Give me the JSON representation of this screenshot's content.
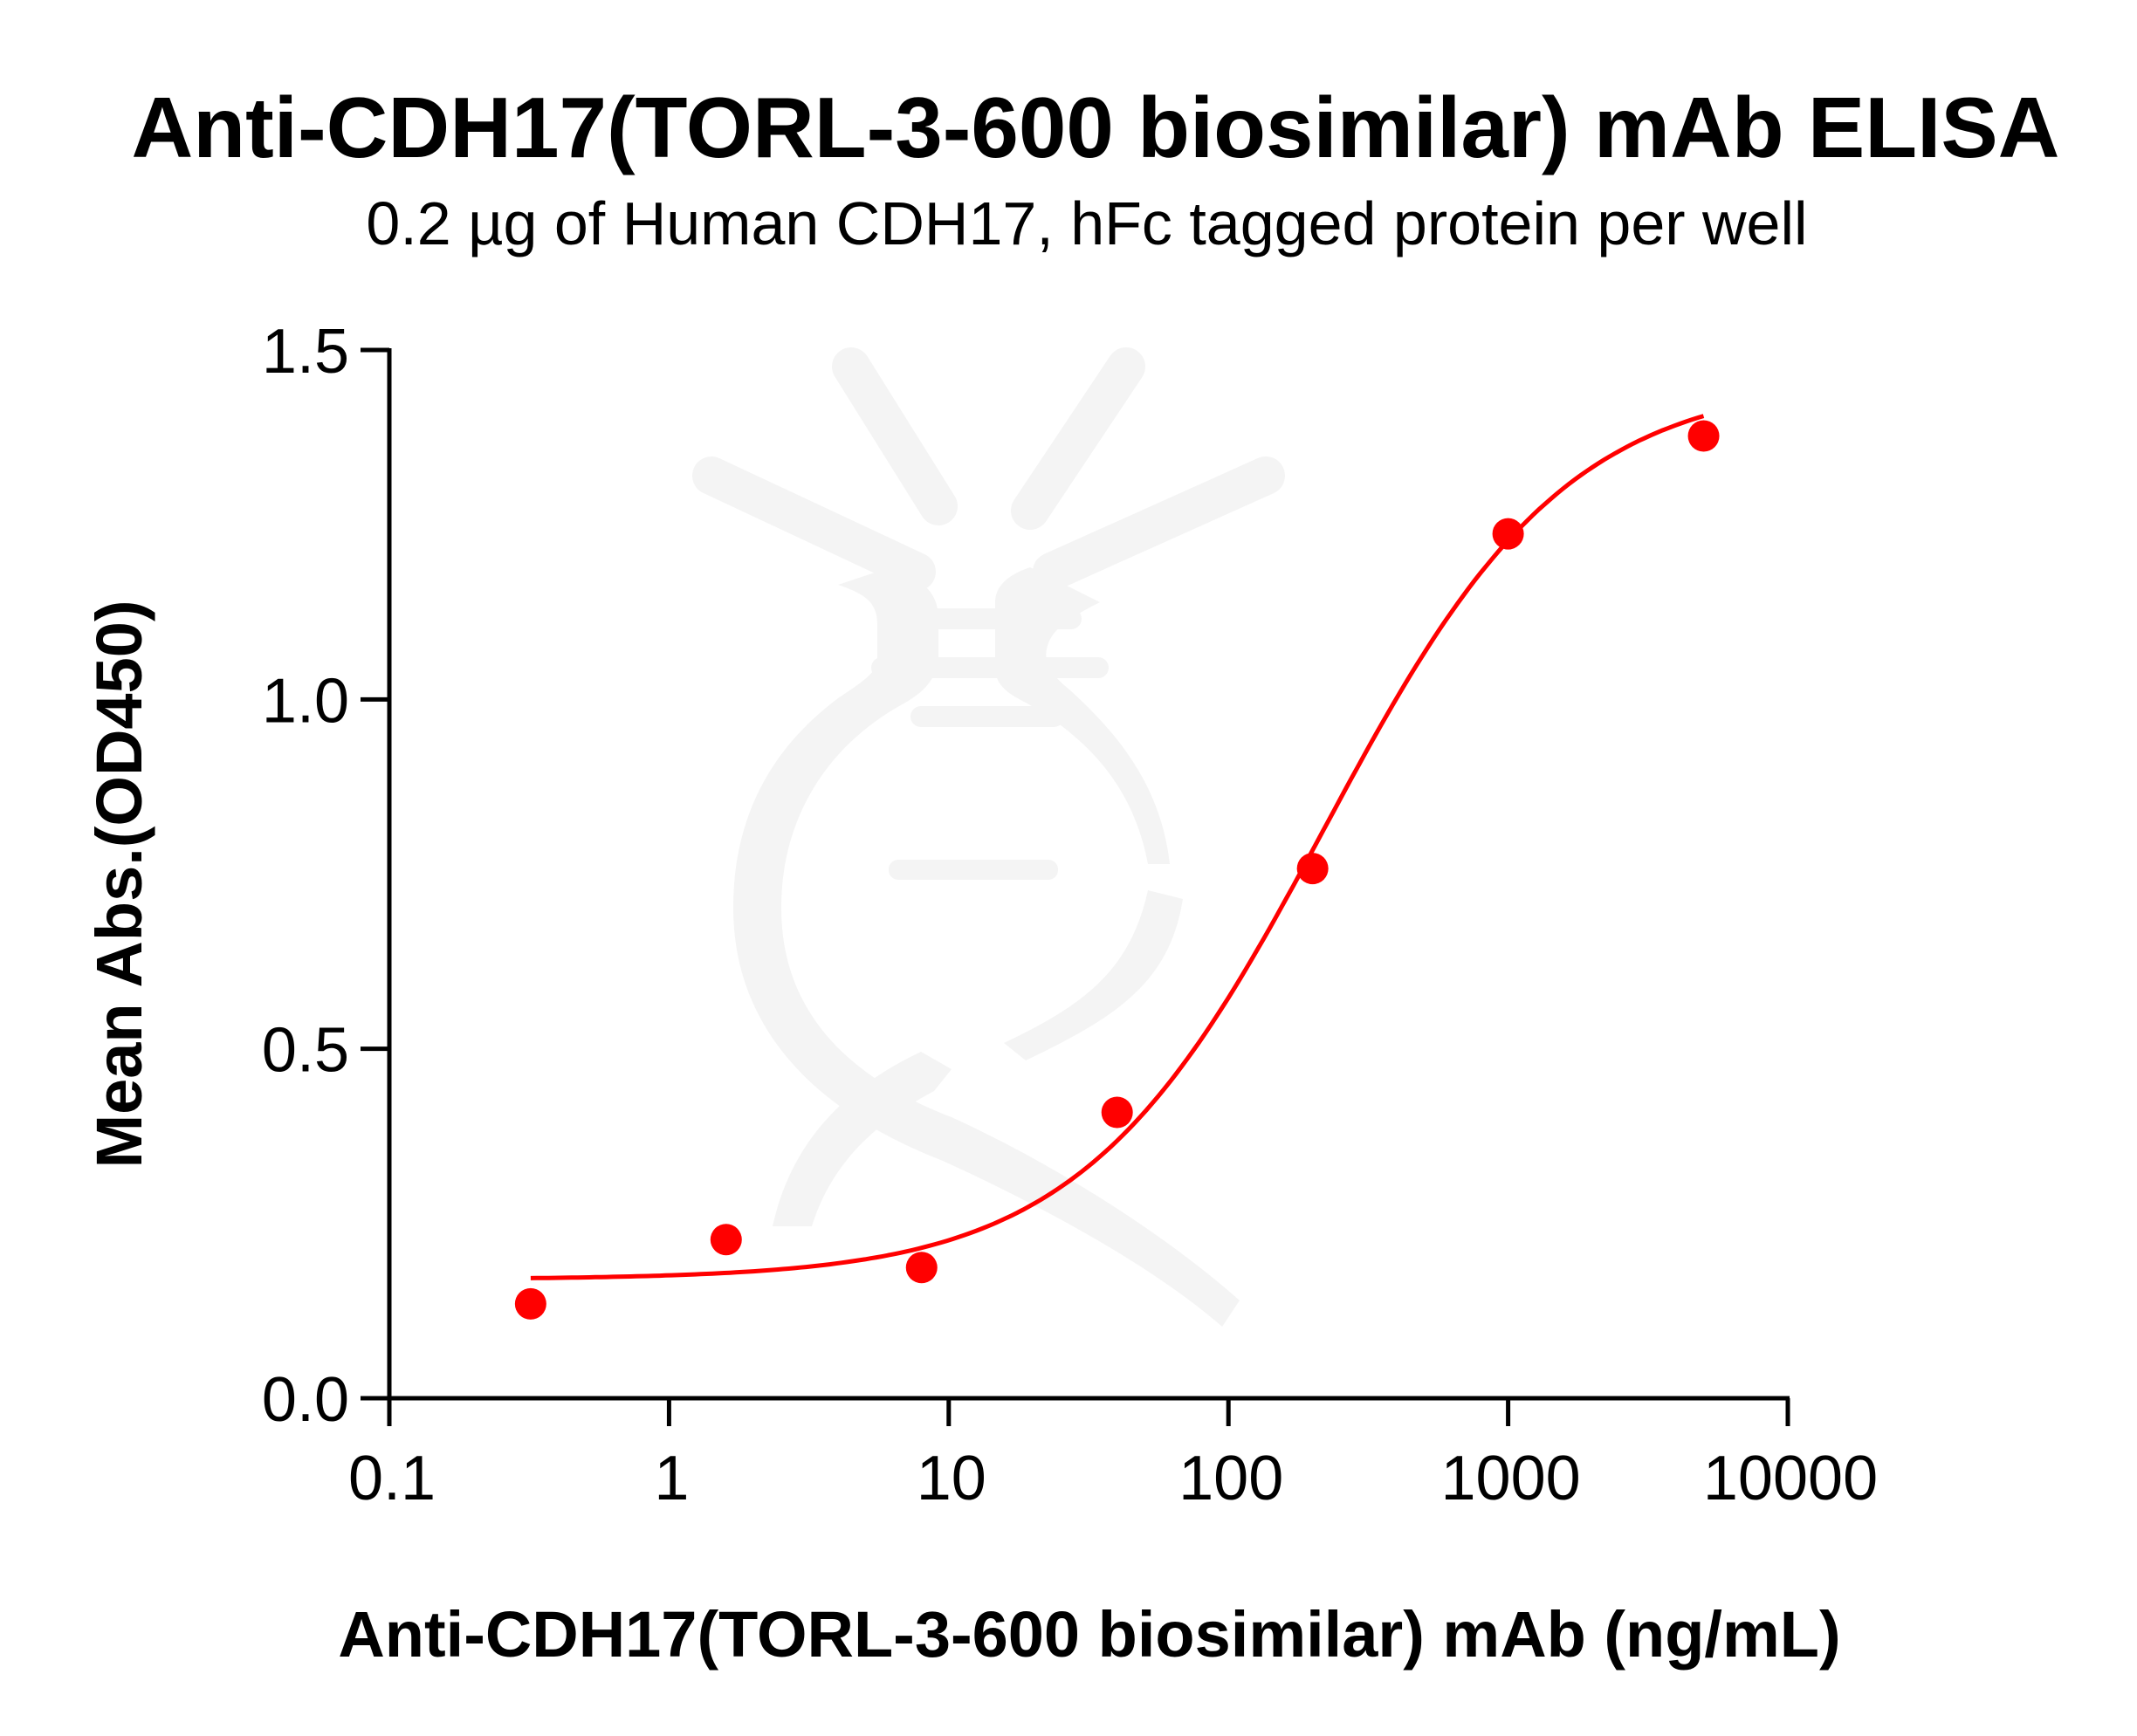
{
  "chart_data": {
    "type": "scatter",
    "title": "Anti-CDH17(TORL-3-600 biosimilar) mAb ELISA",
    "subtitle": "0.2 µg of Human CDH17, hFc tagged protein per well",
    "xlabel": "Anti-CDH17(TORL-3-600 biosimilar) mAb (ng/mL)",
    "ylabel": "Mean Abs.(OD450)",
    "xscale": "log",
    "xlim": [
      0.1,
      10000
    ],
    "ylim": [
      0.0,
      1.5
    ],
    "xticks": [
      "0.1",
      "1",
      "10",
      "100",
      "1000",
      "10000"
    ],
    "xtick_values": [
      0.1,
      1,
      10,
      100,
      1000,
      10000
    ],
    "yticks": [
      "0.0",
      "0.5",
      "1.0",
      "1.5"
    ],
    "ytick_values": [
      0.0,
      0.5,
      1.0,
      1.5
    ],
    "grid": false,
    "legend": null,
    "series": [
      {
        "name": "Anti-CDH17(TORL-3-600 biosimilar) mAb",
        "color": "#ff0000",
        "marker": "circle",
        "x": [
          0.32,
          1.6,
          8,
          40,
          200,
          1000,
          5000
        ],
        "y": [
          0.135,
          0.227,
          0.187,
          0.409,
          0.758,
          1.237,
          1.377
        ]
      }
    ],
    "fit": {
      "model": "4PL",
      "color": "#ff0000",
      "bottom": 0.17,
      "top": 1.46,
      "ec50": 220,
      "hill": 1.0,
      "x_range": [
        0.32,
        5000
      ]
    }
  },
  "colors": {
    "axis": "#000000",
    "data": "#ff0000",
    "watermark": "#f4f4f4",
    "background": "#ffffff"
  }
}
